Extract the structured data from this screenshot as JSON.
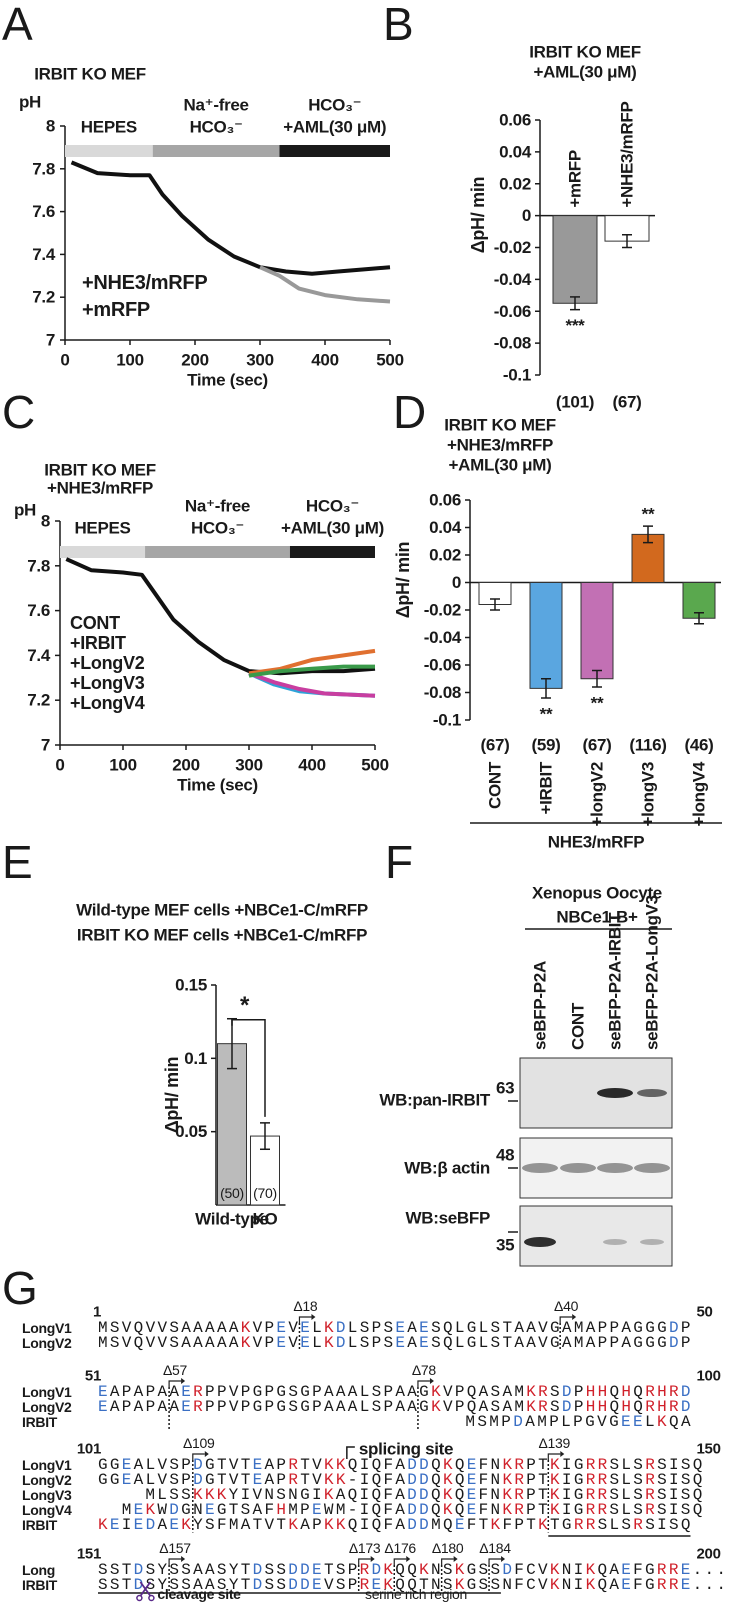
{
  "panel_labels": [
    "A",
    "B",
    "C",
    "D",
    "E",
    "F",
    "G"
  ],
  "chart_data": [
    {
      "type": "line",
      "title": [
        "IRBIT KO MEF"
      ],
      "title_colors": [
        "#111111"
      ],
      "ylabel": "pH",
      "xlabel": "Time (sec)",
      "xlim": [
        0,
        500
      ],
      "xticks": [
        0,
        100,
        200,
        300,
        400,
        500
      ],
      "ylim": [
        7,
        8
      ],
      "yticks": [
        7,
        7.2,
        7.4,
        7.6,
        7.8,
        8
      ],
      "phases": [
        {
          "label": [
            "HEPES"
          ],
          "start": 0,
          "end": 135,
          "color": "#d9d9d9"
        },
        {
          "label": [
            "Na⁺-free",
            "HCO₃⁻"
          ],
          "start": 135,
          "end": 330,
          "color": "#a6a6a6"
        },
        {
          "label": [
            "HCO₃⁻",
            "+AML(30 μM)"
          ],
          "start": 330,
          "end": 500,
          "color": "#1a1a1a"
        }
      ],
      "series": [
        {
          "name": "+NHE3/mRFP",
          "color": "#111111",
          "x": [
            10,
            50,
            100,
            130,
            150,
            180,
            220,
            260,
            300,
            340,
            380,
            420,
            460,
            500
          ],
          "values": [
            7.83,
            7.78,
            7.77,
            7.77,
            7.68,
            7.58,
            7.47,
            7.39,
            7.34,
            7.32,
            7.31,
            7.32,
            7.33,
            7.34
          ]
        },
        {
          "name": "+mRFP",
          "color": "#999999",
          "x": [
            300,
            330,
            360,
            400,
            450,
            500
          ],
          "values": [
            7.34,
            7.3,
            7.24,
            7.21,
            7.19,
            7.18
          ]
        }
      ]
    },
    {
      "type": "bar",
      "title": [
        "IRBIT KO MEF",
        "+AML(30 μM)"
      ],
      "title_colors": [
        "#111111",
        "#111111"
      ],
      "ylabel": "ΔpH/ min",
      "ylim": [
        -0.1,
        0.06
      ],
      "yticks": [
        -0.1,
        -0.08,
        -0.06,
        -0.04,
        -0.02,
        0,
        0.02,
        0.04,
        0.06
      ],
      "categories": [
        "+mRFP",
        "+NHE3/mRFP"
      ],
      "values": [
        -0.055,
        -0.016
      ],
      "errors": [
        0.004,
        0.004
      ],
      "colors": [
        "#999999",
        "#ffffff"
      ],
      "n_labels": [
        "(101)",
        "(67)"
      ],
      "significance": [
        "***",
        null
      ]
    },
    {
      "type": "line",
      "title": [
        "IRBIT KO MEF",
        "+NHE3/mRFP"
      ],
      "title_colors": [
        "#111111",
        "#c00000"
      ],
      "ylabel": "pH",
      "xlabel": "Time (sec)",
      "xlim": [
        0,
        500
      ],
      "xticks": [
        0,
        100,
        200,
        300,
        400,
        500
      ],
      "ylim": [
        7,
        8
      ],
      "yticks": [
        7,
        7.2,
        7.4,
        7.6,
        7.8,
        8
      ],
      "phases": [
        {
          "label": [
            "HEPES"
          ],
          "start": 0,
          "end": 135,
          "color": "#d9d9d9"
        },
        {
          "label": [
            "Na⁺-free",
            "HCO₃⁻"
          ],
          "start": 135,
          "end": 365,
          "color": "#a6a6a6"
        },
        {
          "label": [
            "HCO₃⁻",
            "+AML(30 μM)"
          ],
          "start": 365,
          "end": 500,
          "color": "#1a1a1a"
        }
      ],
      "series": [
        {
          "name": "CONT",
          "color": "#111111",
          "x": [
            10,
            50,
            100,
            130,
            150,
            180,
            220,
            260,
            300,
            350,
            400,
            450,
            500
          ],
          "values": [
            7.83,
            7.78,
            7.77,
            7.76,
            7.68,
            7.56,
            7.46,
            7.38,
            7.33,
            7.32,
            7.33,
            7.33,
            7.34
          ]
        },
        {
          "name": "+IRBIT",
          "color": "#2ea3d8",
          "x": [
            300,
            340,
            380,
            420,
            500
          ],
          "values": [
            7.32,
            7.27,
            7.24,
            7.23,
            7.22
          ]
        },
        {
          "name": "+LongV2",
          "color": "#c83ea0",
          "x": [
            300,
            340,
            380,
            420,
            500
          ],
          "values": [
            7.32,
            7.28,
            7.25,
            7.23,
            7.22
          ]
        },
        {
          "name": "+LongV3",
          "color": "#e07030",
          "x": [
            300,
            350,
            400,
            450,
            500
          ],
          "values": [
            7.32,
            7.34,
            7.38,
            7.4,
            7.42
          ]
        },
        {
          "name": "+LongV4",
          "color": "#3a9a4a",
          "x": [
            300,
            350,
            400,
            450,
            500
          ],
          "values": [
            7.31,
            7.33,
            7.34,
            7.35,
            7.35
          ]
        }
      ]
    },
    {
      "type": "bar",
      "title": [
        "IRBIT KO MEF",
        "+NHE3/mRFP",
        "+AML(30 μM)"
      ],
      "title_colors": [
        "#111111",
        "#c00000",
        "#111111"
      ],
      "ylabel": "ΔpH/ min",
      "ylim": [
        -0.1,
        0.06
      ],
      "yticks": [
        -0.1,
        -0.08,
        -0.06,
        -0.04,
        -0.02,
        0,
        0.02,
        0.04,
        0.06
      ],
      "categories": [
        "CONT",
        "+IRBIT",
        "+longV2",
        "+longV3",
        "+longV4"
      ],
      "values": [
        -0.016,
        -0.077,
        -0.07,
        0.035,
        -0.026
      ],
      "errors": [
        0.004,
        0.007,
        0.006,
        0.006,
        0.004
      ],
      "colors": [
        "#ffffff",
        "#5aa6e0",
        "#c270b4",
        "#d2691e",
        "#5aa84e"
      ],
      "n_labels": [
        "(67)",
        "(59)",
        "(67)",
        "(116)",
        "(46)"
      ],
      "significance": [
        null,
        "**",
        "**",
        "**",
        null
      ],
      "group_label": "NHE3/mRFP"
    },
    {
      "type": "bar",
      "title": [
        "Wild-type MEF cells +NBCe1-C/mRFP",
        "IRBIT KO MEF cells +NBCe1-C/mRFP"
      ],
      "title_colors": [
        "#111111",
        "#111111"
      ],
      "ylabel": "ΔpH/ min",
      "ylim": [
        0,
        0.15
      ],
      "yticks": [
        0.05,
        0.1,
        0.15
      ],
      "categories": [
        "Wild-type",
        "KO"
      ],
      "values": [
        0.11,
        0.047
      ],
      "errors": [
        0.017,
        0.009
      ],
      "colors": [
        "#bbbbbb",
        "#ffffff"
      ],
      "n_labels": [
        "(50)",
        "(70)"
      ],
      "bracket_label": "*"
    }
  ],
  "blot": {
    "title": [
      "Xenopus Oocyte",
      "NBCe1-B+"
    ],
    "lanes": [
      "seBFP-P2A",
      "CONT",
      "seBFP-P2A-IRBIT",
      "seBFP-P2A-LongV3"
    ],
    "rows": [
      {
        "label": "WB:pan-IRBIT",
        "marker": 63
      },
      {
        "label": "WB:β actin",
        "marker": 48
      },
      {
        "label": "WB:seBFP",
        "marker": 35
      }
    ]
  },
  "alignment": {
    "blocks": [
      {
        "start": 1,
        "end": 50,
        "annotations": [
          "Δ18",
          "Δ40"
        ],
        "rows": [
          {
            "name": "LongV1",
            "color": "#222222",
            "seq": "MSVQVVSAAAAAKVPEVELKDLSPSEAESQLGLSTAAVGAMAPPAGGGDP"
          },
          {
            "name": "LongV2",
            "color": "#3a9a4a",
            "seq": "MSVQVVSAAAAAKVPEVELKDLSPSEAESQLGLSTAAVGAMAPPAGGGDP"
          }
        ]
      },
      {
        "start": 51,
        "end": 100,
        "annotations": [
          "Δ57",
          "Δ78"
        ],
        "rows": [
          {
            "name": "LongV1",
            "color": "#222222",
            "seq": "EAPAPAAERPPVPGPGSGPAAALSPAAGKVPQASAMKRSDPHHQHQRHRD"
          },
          {
            "name": "LongV2",
            "color": "#3a9a4a",
            "seq": "EAPAPAAERPPVPGPGSGPAAALSPAAGKVPQASAMKRSDPHHQHQRHRD"
          },
          {
            "name": "IRBIT",
            "color": "#222222",
            "seq": "                               MSMPDAMPLPGVGEELKQA"
          }
        ]
      },
      {
        "start": 101,
        "end": 150,
        "annotations": [
          "Δ109",
          "Δ139"
        ],
        "note": "splicing site",
        "rows": [
          {
            "name": "LongV1",
            "color": "#222222",
            "seq": "GGEALVSPDGTVTEAPRTVKKQIQFADDQKQEFNKRPTKIGRRSLSRSISQ"
          },
          {
            "name": "LongV2",
            "color": "#3a9a4a",
            "seq": "GGEALVSPDGTVTEAPRTVKK-IQFADDQKQEFNKRPTKIGRRSLSRSISQ"
          },
          {
            "name": "LongV3",
            "color": "#222222",
            "seq": "    MLSSKKKYIVNSNGIKAQIQFADDQKQEFNKRPTKIGRRSLSRSISQ"
          },
          {
            "name": "LongV4",
            "color": "#222222",
            "seq": "  MEKWDGNEGTSAFHMPEWM-IQFADDQKQEFNKRPTKIGRRSLSRSISQ"
          },
          {
            "name": "IRBIT",
            "color": "#222222",
            "seq": "KEIEDAEKYSFMATVTKAPKKQIQFADDMQEFTKFPTKTGRRSLSRSISQ"
          }
        ]
      },
      {
        "start": 151,
        "end": 200,
        "annotations": [
          "Δ157",
          "Δ173",
          "Δ176",
          "Δ180",
          "Δ184"
        ],
        "rows": [
          {
            "name": "Long",
            "color": "#222222",
            "seq": "SSTDSYSSAASYTDSSDDETSPRDKQQKNSKGSSDFCVKNIKQAEFGRRE..."
          },
          {
            "name": "IRBIT",
            "color": "#222222",
            "seq": "SSTDSYSSAASYTDSSDDEVSPREKQQTNSKGSSNFCVKNIKQAEFGRRE..."
          }
        ]
      }
    ],
    "cleavage_site": "cleavage site",
    "serine_region": "serine rich region"
  }
}
